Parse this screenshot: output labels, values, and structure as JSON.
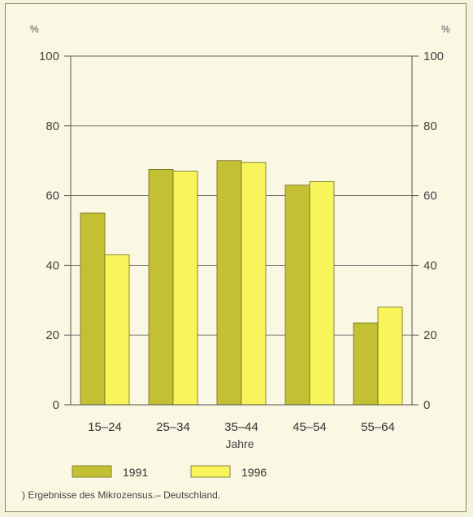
{
  "chart_data": {
    "type": "bar",
    "categories": [
      "15–24",
      "25–34",
      "35–44",
      "45–54",
      "55–64"
    ],
    "series": [
      {
        "name": "1991",
        "values": [
          55,
          67.5,
          70,
          63,
          23.5
        ],
        "color": "#c4c034"
      },
      {
        "name": "1996",
        "values": [
          43,
          67,
          69.5,
          64,
          28
        ],
        "color": "#f8f55a"
      }
    ],
    "xlabel": "Jahre",
    "ylabel_left": "%",
    "ylabel_right": "%",
    "ylim": [
      0,
      100
    ],
    "yticks": [
      0,
      20,
      40,
      60,
      80,
      100
    ],
    "grid": true,
    "legend_position": "bottom"
  },
  "footnote": ") Ergebnisse des Mikrozensus.– Deutschland."
}
